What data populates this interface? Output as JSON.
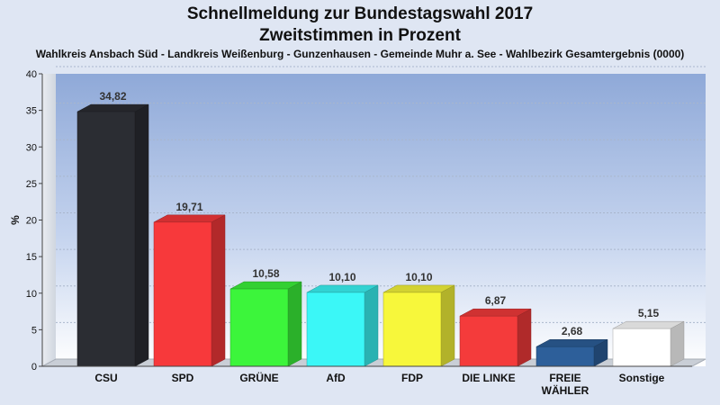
{
  "chart_data": {
    "type": "bar",
    "title": "Schnellmeldung zur Bundestagswahl 2017",
    "subtitle": "Zweitstimmen in Prozent",
    "caption": "Wahlkreis Ansbach Süd - Landkreis Weißenburg - Gunzenhausen - Gemeinde Muhr a. See - Wahlbezirk Gesamtergebnis (0000)",
    "ylabel": "%",
    "xlabel": "",
    "ylim": [
      0,
      40
    ],
    "yticks": [
      0,
      5,
      10,
      15,
      20,
      25,
      30,
      35,
      40
    ],
    "grid": true,
    "categories": [
      "CSU",
      "SPD",
      "GRÜNE",
      "AfD",
      "FDP",
      "DIE LINKE",
      "FREIE WÄHLER",
      "Sonstige"
    ],
    "category_lines": [
      [
        "CSU"
      ],
      [
        "SPD"
      ],
      [
        "GRÜNE"
      ],
      [
        "AfD"
      ],
      [
        "FDP"
      ],
      [
        "DIE LINKE"
      ],
      [
        "FREIE",
        "WÄHLER"
      ],
      [
        "Sonstige"
      ]
    ],
    "values": [
      34.82,
      19.71,
      10.58,
      10.1,
      10.1,
      6.87,
      2.68,
      5.15
    ],
    "value_labels": [
      "34,82",
      "19,71",
      "10,58",
      "10,10",
      "10,10",
      "6,87",
      "2,68",
      "5,15"
    ],
    "colors": [
      "#2b2d33",
      "#f7393b",
      "#3cf53b",
      "#3bf7f7",
      "#f7f73b",
      "#f43b3b",
      "#2d5f9a",
      "#ffffff"
    ]
  }
}
